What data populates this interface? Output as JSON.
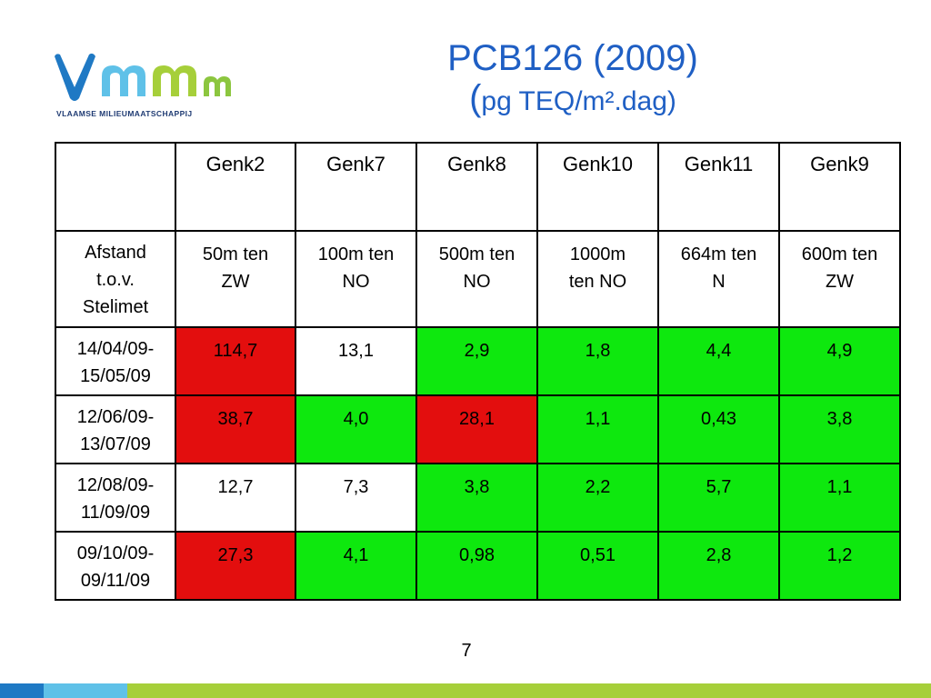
{
  "logo": {
    "tagline": "VLAAMSE MILIEUMAATSCHAPPIJ",
    "colors": {
      "v": "#1f79c4",
      "m1": "#5fc1e8",
      "m2": "#a6cf3a",
      "m3": "#8cc63f"
    }
  },
  "title": {
    "line1": "PCB126 (2009)",
    "paren": "(",
    "line2": "pg TEQ/m².dag)",
    "color": "#1f5fc4"
  },
  "table": {
    "header": [
      "",
      "Genk2",
      "Genk7",
      "Genk8",
      "Genk10",
      "Genk11",
      "Genk9"
    ],
    "distance_row": {
      "label": [
        "Afstand",
        "t.o.v.",
        "Stelimet"
      ],
      "cells": [
        [
          "50m ten",
          "ZW"
        ],
        [
          "100m ten",
          "NO"
        ],
        [
          "500m ten",
          "NO"
        ],
        [
          "1000m",
          "ten NO"
        ],
        [
          "664m ten",
          "N"
        ],
        [
          "600m ten",
          "ZW"
        ]
      ]
    },
    "rows": [
      {
        "period": [
          "14/04/09-",
          "15/05/09"
        ],
        "values": [
          "114,7",
          "13,1",
          "2,9",
          "1,8",
          "4,4",
          "4,9"
        ],
        "status": [
          "red",
          "white",
          "green",
          "green",
          "green",
          "green"
        ]
      },
      {
        "period": [
          "12/06/09-",
          "13/07/09"
        ],
        "values": [
          "38,7",
          "4,0",
          "28,1",
          "1,1",
          "0,43",
          "3,8"
        ],
        "status": [
          "red",
          "green",
          "red",
          "green",
          "green",
          "green"
        ]
      },
      {
        "period": [
          "12/08/09-",
          "11/09/09"
        ],
        "values": [
          "12,7",
          "7,3",
          "3,8",
          "2,2",
          "5,7",
          "1,1"
        ],
        "status": [
          "white",
          "white",
          "green",
          "green",
          "green",
          "green"
        ]
      },
      {
        "period": [
          "09/10/09-",
          "09/11/09"
        ],
        "values": [
          "27,3",
          "4,1",
          "0,98",
          "0,51",
          "2,8",
          "1,2"
        ],
        "status": [
          "red",
          "green",
          "green",
          "green",
          "green",
          "green"
        ]
      }
    ],
    "status_colors": {
      "red": "#e30e0e",
      "green": "#0ee80e",
      "white": "#ffffff"
    }
  },
  "page_number": "7",
  "footer_bar_colors": [
    "#1f79c4",
    "#5fc1e8",
    "#a6cf3a"
  ]
}
